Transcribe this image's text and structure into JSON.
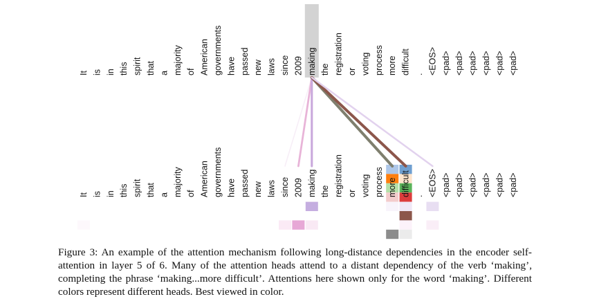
{
  "figure": {
    "tokens": [
      "It",
      "is",
      "in",
      "this",
      "spirit",
      "that",
      "a",
      "majority",
      "of",
      "American",
      "governments",
      "have",
      "passed",
      "new",
      "laws",
      "since",
      "2009",
      "making",
      "the",
      "registration",
      "or",
      "voting",
      "process",
      "more",
      "difficult",
      ".",
      "<EOS>",
      "<pad>",
      "<pad>",
      "<pad>",
      "<pad>",
      "<pad>",
      "<pad>"
    ],
    "source_token_index": 17,
    "source_highlight_color": "#d3d3d3",
    "attention_lines": [
      {
        "to": 15,
        "color": "#f7eef7",
        "weight": 0.2
      },
      {
        "to": 16,
        "color": "#e8b4d8",
        "weight": 0.6
      },
      {
        "to": 17,
        "color": "#c9a8dc",
        "weight": 0.7
      },
      {
        "to": 23,
        "color": "#7f7f6e",
        "weight": 1.0
      },
      {
        "to": 24,
        "color": "#8c564b",
        "weight": 1.0
      },
      {
        "to": 26,
        "color": "#e2d2ee",
        "weight": 0.5
      }
    ],
    "head_colors": [
      "#1f77b4",
      "#ff7f0e",
      "#2ca02c",
      "#d62728",
      "#9467bd",
      "#8c564b",
      "#e377c2",
      "#7f7f7f"
    ],
    "attention_cells": [
      {
        "token": 23,
        "row": 0,
        "color": "#aec7e8"
      },
      {
        "token": 24,
        "row": 0,
        "color": "#6f9fd0"
      },
      {
        "token": 23,
        "row": 1,
        "color": "#ff7f0e"
      },
      {
        "token": 24,
        "row": 1,
        "color": "#fde4cc"
      },
      {
        "token": 23,
        "row": 2,
        "color": "#b5e0a8"
      },
      {
        "token": 24,
        "row": 2,
        "color": "#5ab35a"
      },
      {
        "token": 23,
        "row": 3,
        "color": "#f3cccc"
      },
      {
        "token": 24,
        "row": 3,
        "color": "#dc3c3c"
      },
      {
        "token": 17,
        "row": 4,
        "color": "#c5aee0"
      },
      {
        "token": 23,
        "row": 4,
        "color": "#f8f4fb"
      },
      {
        "token": 24,
        "row": 4,
        "color": "#efe7f5"
      },
      {
        "token": 26,
        "row": 4,
        "color": "#e8def2"
      },
      {
        "token": 24,
        "row": 5,
        "color": "#8c564b"
      },
      {
        "token": 0,
        "row": 6,
        "color": "#fdf8fc"
      },
      {
        "token": 15,
        "row": 6,
        "color": "#fbeaf5"
      },
      {
        "token": 16,
        "row": 6,
        "color": "#e7a8d6"
      },
      {
        "token": 17,
        "row": 6,
        "color": "#f9e9f4"
      },
      {
        "token": 24,
        "row": 6,
        "color": "#fcf2fa"
      },
      {
        "token": 26,
        "row": 6,
        "color": "#faeef7"
      },
      {
        "token": 23,
        "row": 7,
        "color": "#8c8c8c"
      },
      {
        "token": 24,
        "row": 7,
        "color": "#ebebeb"
      }
    ]
  },
  "caption": {
    "text": "Figure 3: An example of the attention mechanism following long-distance dependencies in the encoder self-attention in layer 5 of 6. Many of the attention heads attend to a distant dependency of the verb ‘making’, completing the phrase ‘making...more difficult’. Attentions here shown only for the word ‘making’. Different colors represent different heads. Best viewed in color."
  }
}
